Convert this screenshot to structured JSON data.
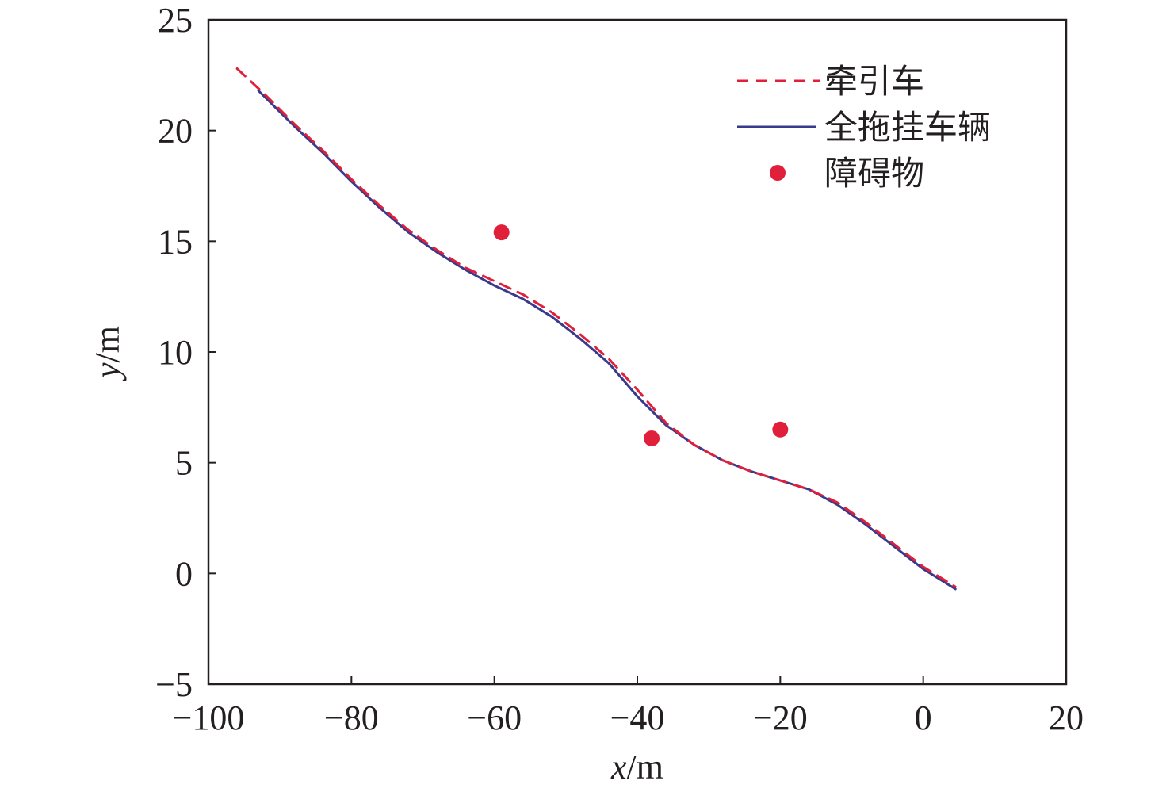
{
  "chart_data": {
    "type": "line",
    "title": "",
    "xlabel_var": "x",
    "xlabel_unit": "/m",
    "ylabel_var": "y",
    "ylabel_unit": "/m",
    "xlim": [
      -100,
      20
    ],
    "ylim": [
      -5,
      25
    ],
    "xticks": [
      -100,
      -80,
      -60,
      -40,
      -20,
      0,
      20
    ],
    "yticks": [
      -5,
      0,
      5,
      10,
      15,
      20,
      25
    ],
    "xtick_labels": [
      "−100",
      "−80",
      "−60",
      "−40",
      "−20",
      "0",
      "20"
    ],
    "ytick_labels": [
      "−5",
      "0",
      "5",
      "10",
      "15",
      "20",
      "25"
    ],
    "grid": false,
    "legend_position": "top-right",
    "series": [
      {
        "name": "牵引车",
        "style": "dashed",
        "color": "#e0203a",
        "x": [
          -96,
          -92,
          -88,
          -84,
          -80,
          -76,
          -72,
          -68,
          -64,
          -60,
          -56,
          -52,
          -48,
          -44,
          -40,
          -36,
          -32,
          -28,
          -24,
          -20,
          -16,
          -12,
          -8,
          -4,
          0,
          4.5
        ],
        "y": [
          22.8,
          21.6,
          20.3,
          19.1,
          17.8,
          16.6,
          15.5,
          14.6,
          13.8,
          13.2,
          12.6,
          11.8,
          10.8,
          9.7,
          8.3,
          6.8,
          5.8,
          5.1,
          4.6,
          4.2,
          3.8,
          3.2,
          2.3,
          1.3,
          0.3,
          -0.6
        ]
      },
      {
        "name": "全拖挂车辆",
        "style": "solid",
        "color": "#3a3a8c",
        "x": [
          -93,
          -88,
          -84,
          -80,
          -76,
          -72,
          -68,
          -64,
          -60,
          -56,
          -52,
          -48,
          -44,
          -40,
          -36,
          -32,
          -28,
          -24,
          -20,
          -16,
          -12,
          -8,
          -4,
          0,
          4.5
        ],
        "y": [
          21.8,
          20.2,
          19.0,
          17.7,
          16.5,
          15.4,
          14.5,
          13.7,
          13.0,
          12.4,
          11.6,
          10.6,
          9.5,
          8.0,
          6.7,
          5.8,
          5.1,
          4.6,
          4.2,
          3.8,
          3.1,
          2.2,
          1.2,
          0.2,
          -0.7
        ]
      }
    ],
    "obstacles": {
      "name": "障碍物",
      "color": "#e0203a",
      "points": [
        {
          "x": -59,
          "y": 15.4
        },
        {
          "x": -38,
          "y": 6.1
        },
        {
          "x": -20,
          "y": 6.5
        }
      ]
    }
  }
}
